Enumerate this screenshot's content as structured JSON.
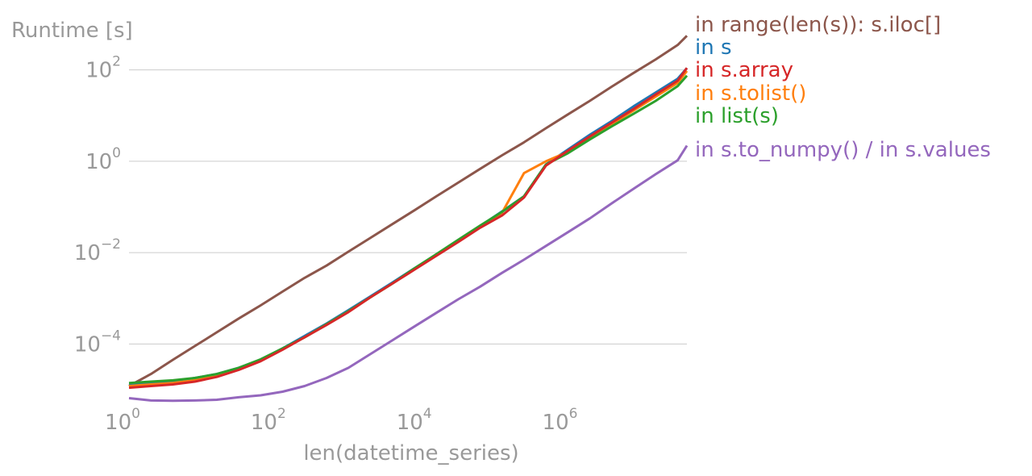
{
  "chart_data": {
    "type": "line",
    "title": "",
    "xlabel": "len(datetime_series)",
    "ylabel": "Runtime [s]",
    "x_scale": "log",
    "y_scale": "log",
    "xlim": [
      1,
      45000000
    ],
    "ylim": [
      5e-06,
      1000
    ],
    "grid": "horizontal",
    "legend_placement": "right of plot, at line ends",
    "x_ticks": [
      {
        "value": 1,
        "base": "10",
        "exp": "0"
      },
      {
        "value": 100,
        "base": "10",
        "exp": "2"
      },
      {
        "value": 10000,
        "base": "10",
        "exp": "4"
      },
      {
        "value": 1000000,
        "base": "10",
        "exp": "6"
      }
    ],
    "y_ticks": [
      {
        "value": 0.0001,
        "base": "10",
        "exp": "−4"
      },
      {
        "value": 0.01,
        "base": "10",
        "exp": "−2"
      },
      {
        "value": 1,
        "base": "10",
        "exp": "0"
      },
      {
        "value": 100,
        "base": "10",
        "exp": "2"
      }
    ],
    "x": [
      1,
      2,
      4,
      8,
      16,
      32,
      64,
      128,
      256,
      512,
      1024,
      2048,
      4096,
      8192,
      16384,
      32768,
      65536,
      131072,
      262144,
      524288,
      1048576,
      2097152,
      4194304,
      8388608,
      16777216,
      33554432,
      45000000
    ],
    "series": [
      {
        "name": "in range(len(s)): s.iloc[]",
        "color": "#8c564b",
        "values": [
          1.2e-05,
          2.2e-05,
          4.5e-05,
          9e-05,
          0.00018,
          0.00036,
          0.0007,
          0.0014,
          0.0028,
          0.0052,
          0.0105,
          0.021,
          0.042,
          0.084,
          0.17,
          0.34,
          0.68,
          1.35,
          2.6,
          5.3,
          10.6,
          21,
          43,
          86,
          170,
          350,
          560
        ]
      },
      {
        "name": "in s",
        "color": "#1f77b4",
        "values": [
          1.3e-05,
          1.4e-05,
          1.5e-05,
          1.8e-05,
          2.2e-05,
          3e-05,
          4.5e-05,
          8e-05,
          0.00015,
          0.00028,
          0.00055,
          0.0011,
          0.0022,
          0.0045,
          0.009,
          0.018,
          0.038,
          0.08,
          0.17,
          0.85,
          1.8,
          3.8,
          7.6,
          16,
          32,
          64,
          110
        ]
      },
      {
        "name": "in s.array",
        "color": "#d62728",
        "values": [
          1.1e-05,
          1.2e-05,
          1.3e-05,
          1.5e-05,
          1.9e-05,
          2.7e-05,
          4.2e-05,
          7.5e-05,
          0.00014,
          0.00026,
          0.0005,
          0.00105,
          0.0021,
          0.0042,
          0.0085,
          0.017,
          0.035,
          0.065,
          0.16,
          0.8,
          1.7,
          3.5,
          7,
          14,
          29,
          58,
          110
        ]
      },
      {
        "name": "in s.tolist()",
        "color": "#ff7f0e",
        "values": [
          1.2e-05,
          1.3e-05,
          1.4e-05,
          1.6e-05,
          2e-05,
          2.8e-05,
          4.4e-05,
          7.8e-05,
          0.00014,
          0.00027,
          0.00052,
          0.00105,
          0.0021,
          0.0043,
          0.0087,
          0.018,
          0.037,
          0.075,
          0.55,
          1.0,
          1.6,
          3.2,
          6.5,
          13,
          26,
          52,
          95
        ]
      },
      {
        "name": "in list(s)",
        "color": "#2ca02c",
        "values": [
          1.4e-05,
          1.5e-05,
          1.6e-05,
          1.8e-05,
          2.2e-05,
          3e-05,
          4.6e-05,
          8e-05,
          0.00014,
          0.00027,
          0.00052,
          0.00105,
          0.0021,
          0.0045,
          0.0092,
          0.019,
          0.039,
          0.078,
          0.17,
          0.85,
          1.5,
          3.0,
          5.8,
          11,
          21,
          44,
          75
        ]
      },
      {
        "name": "in s.to_numpy() / in s.values",
        "color": "#9467bd",
        "values": [
          6.5e-06,
          5.8e-06,
          5.7e-06,
          5.8e-06,
          6e-06,
          6.8e-06,
          7.5e-06,
          9e-06,
          1.2e-05,
          1.8e-05,
          3e-05,
          6e-05,
          0.00012,
          0.00024,
          0.00048,
          0.00095,
          0.0018,
          0.0036,
          0.007,
          0.014,
          0.028,
          0.056,
          0.12,
          0.25,
          0.52,
          1.05,
          2.2
        ]
      }
    ]
  }
}
